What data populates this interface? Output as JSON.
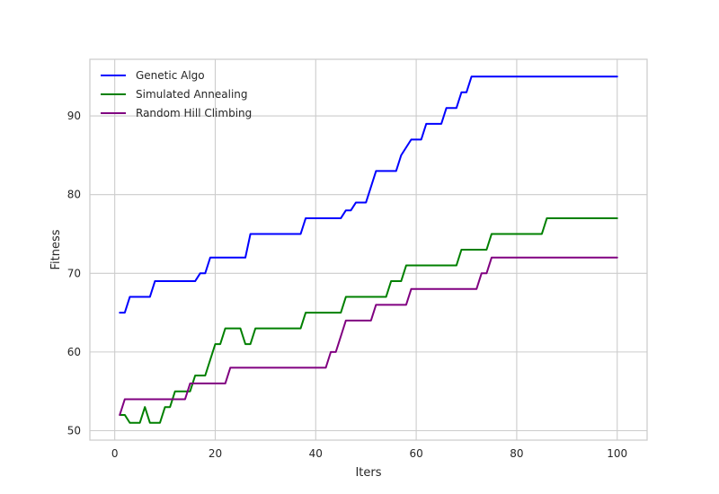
{
  "chart_data": {
    "type": "line",
    "xlabel": "Iters",
    "ylabel": "Fitness",
    "xlim": [
      -4.95,
      105.95
    ],
    "ylim": [
      48.8,
      97.2
    ],
    "xticks": [
      0,
      20,
      40,
      60,
      80,
      100
    ],
    "yticks": [
      50,
      60,
      70,
      80,
      90
    ],
    "grid": true,
    "legend_position": "top-left",
    "series": [
      {
        "name": "Genetic Algo",
        "color": "#0000ff",
        "points": [
          [
            1,
            65
          ],
          [
            2,
            65
          ],
          [
            3,
            67
          ],
          [
            7,
            67
          ],
          [
            8,
            69
          ],
          [
            16,
            69
          ],
          [
            17,
            70
          ],
          [
            18,
            70
          ],
          [
            19,
            72
          ],
          [
            26,
            72
          ],
          [
            27,
            75
          ],
          [
            37,
            75
          ],
          [
            38,
            77
          ],
          [
            45,
            77
          ],
          [
            46,
            78
          ],
          [
            47,
            78
          ],
          [
            48,
            79
          ],
          [
            50,
            79
          ],
          [
            51,
            81
          ],
          [
            52,
            83
          ],
          [
            56,
            83
          ],
          [
            57,
            85
          ],
          [
            59,
            87
          ],
          [
            61,
            87
          ],
          [
            62,
            89
          ],
          [
            65,
            89
          ],
          [
            66,
            91
          ],
          [
            68,
            91
          ],
          [
            69,
            93
          ],
          [
            70,
            93
          ],
          [
            71,
            95
          ],
          [
            100,
            95
          ]
        ]
      },
      {
        "name": "Simulated Annealing",
        "color": "#008000",
        "points": [
          [
            1,
            52
          ],
          [
            2,
            52
          ],
          [
            3,
            51
          ],
          [
            5,
            51
          ],
          [
            6,
            53
          ],
          [
            7,
            51
          ],
          [
            9,
            51
          ],
          [
            10,
            53
          ],
          [
            11,
            53
          ],
          [
            12,
            55
          ],
          [
            15,
            55
          ],
          [
            16,
            57
          ],
          [
            18,
            57
          ],
          [
            20,
            61
          ],
          [
            21,
            61
          ],
          [
            22,
            63
          ],
          [
            25,
            63
          ],
          [
            26,
            61
          ],
          [
            27,
            61
          ],
          [
            28,
            63
          ],
          [
            37,
            63
          ],
          [
            38,
            65
          ],
          [
            45,
            65
          ],
          [
            46,
            67
          ],
          [
            54,
            67
          ],
          [
            55,
            69
          ],
          [
            57,
            69
          ],
          [
            58,
            71
          ],
          [
            68,
            71
          ],
          [
            69,
            73
          ],
          [
            74,
            73
          ],
          [
            75,
            75
          ],
          [
            85,
            75
          ],
          [
            86,
            77
          ],
          [
            100,
            77
          ]
        ]
      },
      {
        "name": "Random Hill Climbing",
        "color": "#800080",
        "points": [
          [
            1,
            52
          ],
          [
            2,
            54
          ],
          [
            14,
            54
          ],
          [
            15,
            56
          ],
          [
            22,
            56
          ],
          [
            23,
            58
          ],
          [
            42,
            58
          ],
          [
            43,
            60
          ],
          [
            44,
            60
          ],
          [
            46,
            64
          ],
          [
            51,
            64
          ],
          [
            52,
            66
          ],
          [
            58,
            66
          ],
          [
            59,
            68
          ],
          [
            72,
            68
          ],
          [
            73,
            70
          ],
          [
            74,
            70
          ],
          [
            75,
            72
          ],
          [
            100,
            72
          ]
        ]
      }
    ]
  }
}
